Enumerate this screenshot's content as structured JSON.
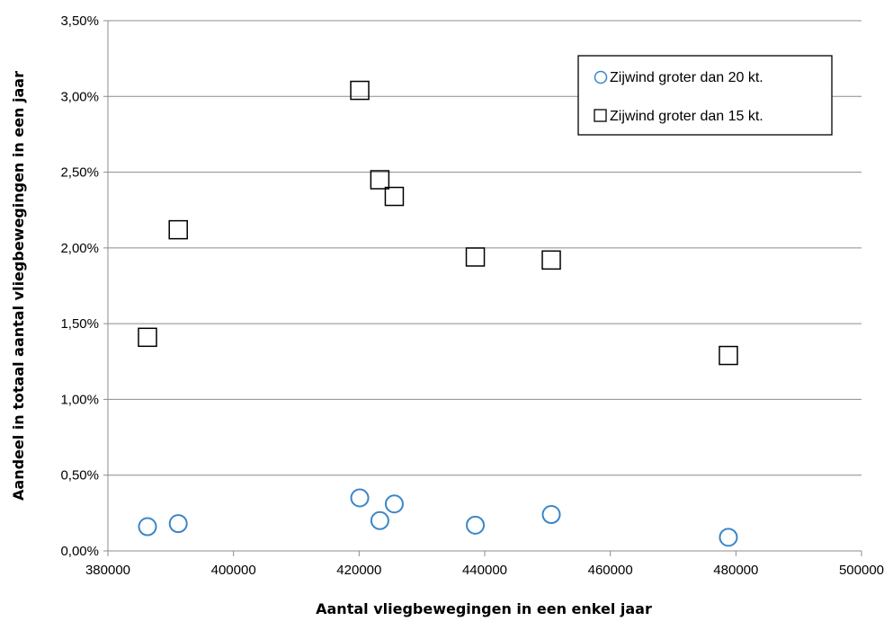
{
  "chart_data": {
    "type": "scatter",
    "title": "",
    "xlabel": "Aantal vliegbewegingen in een enkel jaar",
    "ylabel": "Aandeel in totaal aantal vliegbewegingen in een jaar",
    "xlim": [
      380000,
      500000
    ],
    "ylim": [
      0,
      0.035
    ],
    "x_ticks": [
      "380000",
      "400000",
      "420000",
      "440000",
      "460000",
      "480000",
      "500000"
    ],
    "y_ticks": [
      "0,00%",
      "0,50%",
      "1,00%",
      "1,50%",
      "2,00%",
      "2,50%",
      "3,00%",
      "3,50%"
    ],
    "grid": "horizontal",
    "legend_position": "top-right",
    "series": [
      {
        "name": "Zijwind groter dan 20 kt.",
        "marker": "circle",
        "color": "#3a86c8",
        "points": [
          [
            386300,
            0.0016
          ],
          [
            391200,
            0.0018
          ],
          [
            420100,
            0.0035
          ],
          [
            423300,
            0.002
          ],
          [
            425600,
            0.0031
          ],
          [
            438500,
            0.0017
          ],
          [
            450600,
            0.0024
          ],
          [
            478800,
            0.0009
          ]
        ]
      },
      {
        "name": "Zijwind groter dan 15 kt.",
        "marker": "square",
        "color": "#000000",
        "points": [
          [
            386300,
            0.0141
          ],
          [
            391200,
            0.0212
          ],
          [
            420100,
            0.0304
          ],
          [
            423300,
            0.0245
          ],
          [
            425600,
            0.0234
          ],
          [
            438500,
            0.0194
          ],
          [
            450600,
            0.0192
          ],
          [
            478800,
            0.0129
          ]
        ]
      }
    ]
  }
}
